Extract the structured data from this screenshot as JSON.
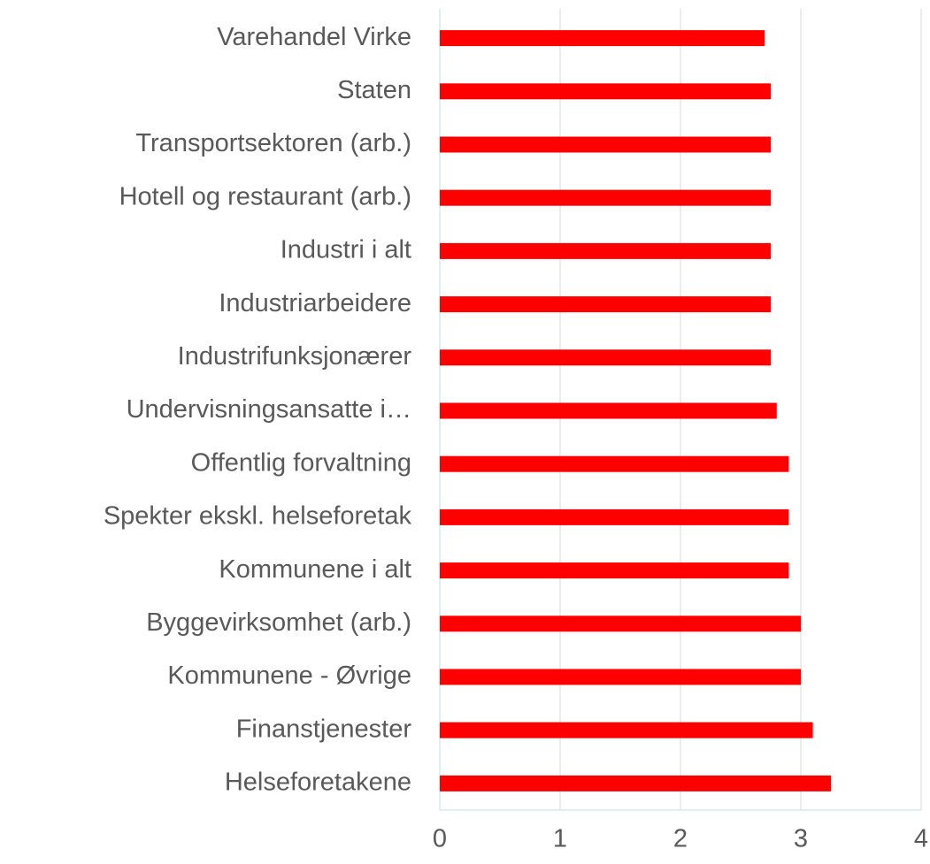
{
  "chart_data": {
    "type": "bar",
    "orientation": "horizontal",
    "categories": [
      "Varehandel Virke",
      "Staten",
      "Transportsektoren (arb.)",
      "Hotell og restaurant (arb.)",
      "Industri i alt",
      "Industriarbeidere",
      "Industrifunksjonærer",
      "Undervisningsansatte i…",
      "Offentlig forvaltning",
      "Spekter ekskl. helseforetak",
      "Kommunene i alt",
      "Byggevirksomhet (arb.)",
      "Kommunene - Øvrige",
      "Finanstjenester",
      "Helseforetakene"
    ],
    "values": [
      2.7,
      2.75,
      2.75,
      2.75,
      2.75,
      2.75,
      2.75,
      2.8,
      2.9,
      2.9,
      2.9,
      3.0,
      3.0,
      3.1,
      3.25
    ],
    "color": "#ff0000",
    "xlim": [
      0,
      4
    ],
    "xticks": [
      0,
      1,
      2,
      3,
      4
    ],
    "grid": true
  }
}
